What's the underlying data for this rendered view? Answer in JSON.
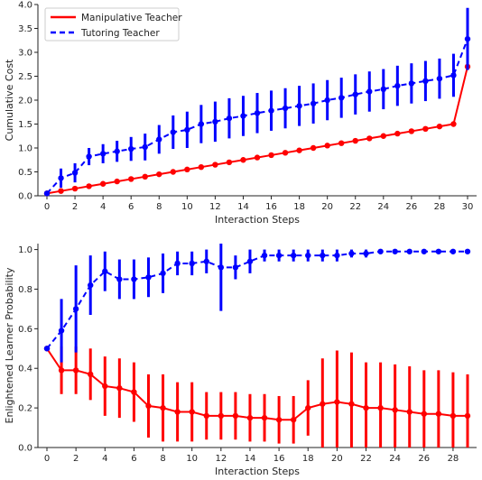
{
  "chart_data": [
    {
      "type": "line",
      "xlabel": "Interaction Steps",
      "ylabel": "Cumulative Cost",
      "xlim": [
        0,
        30
      ],
      "ylim": [
        0,
        4.0
      ],
      "xticks": [
        0,
        2,
        4,
        6,
        8,
        10,
        12,
        14,
        16,
        18,
        20,
        22,
        24,
        26,
        28,
        30
      ],
      "yticks": [
        0.0,
        0.5,
        1.0,
        1.5,
        2.0,
        2.5,
        3.0,
        3.5,
        4.0
      ],
      "ytick_labels": [
        "0.0",
        "0.5",
        "1.0",
        "1.5",
        "2.0",
        "2.5",
        "3.0",
        "3.5",
        "4.0"
      ],
      "legend": {
        "placement": "top-left"
      },
      "series": [
        {
          "name": "Manipulative Teacher",
          "color": "#ff0000",
          "style": "solid",
          "x": [
            0,
            1,
            2,
            3,
            4,
            5,
            6,
            7,
            8,
            9,
            10,
            11,
            12,
            13,
            14,
            15,
            16,
            17,
            18,
            19,
            20,
            21,
            22,
            23,
            24,
            25,
            26,
            27,
            28,
            29,
            30
          ],
          "y": [
            0.05,
            0.1,
            0.15,
            0.2,
            0.25,
            0.3,
            0.35,
            0.4,
            0.45,
            0.5,
            0.55,
            0.6,
            0.65,
            0.7,
            0.75,
            0.8,
            0.85,
            0.9,
            0.95,
            1.0,
            1.05,
            1.1,
            1.15,
            1.2,
            1.25,
            1.3,
            1.35,
            1.4,
            1.45,
            1.5,
            2.7
          ],
          "err": [
            0,
            0,
            0,
            0,
            0,
            0,
            0,
            0,
            0,
            0,
            0,
            0,
            0,
            0,
            0,
            0,
            0,
            0,
            0,
            0,
            0,
            0,
            0,
            0,
            0,
            0,
            0,
            0,
            0,
            0,
            0
          ]
        },
        {
          "name": "Tutoring Teacher",
          "color": "#0000ff",
          "style": "dashed",
          "x": [
            0,
            1,
            2,
            3,
            4,
            5,
            6,
            7,
            8,
            9,
            10,
            11,
            12,
            13,
            14,
            15,
            16,
            17,
            18,
            19,
            20,
            21,
            22,
            23,
            24,
            25,
            26,
            27,
            28,
            29,
            30
          ],
          "y": [
            0.05,
            0.37,
            0.48,
            0.82,
            0.88,
            0.93,
            0.98,
            1.02,
            1.18,
            1.33,
            1.38,
            1.5,
            1.55,
            1.62,
            1.67,
            1.73,
            1.78,
            1.83,
            1.88,
            1.93,
            2.0,
            2.05,
            2.12,
            2.18,
            2.23,
            2.3,
            2.35,
            2.4,
            2.45,
            2.52,
            3.28
          ],
          "err": [
            0.05,
            0.2,
            0.2,
            0.18,
            0.2,
            0.22,
            0.25,
            0.28,
            0.3,
            0.35,
            0.38,
            0.4,
            0.42,
            0.42,
            0.42,
            0.42,
            0.42,
            0.42,
            0.42,
            0.42,
            0.42,
            0.42,
            0.42,
            0.42,
            0.42,
            0.42,
            0.42,
            0.42,
            0.42,
            0.45,
            0.65
          ]
        }
      ]
    },
    {
      "type": "line",
      "xlabel": "Interaction Steps",
      "ylabel": "Enlightened Learner Probability",
      "xlim": [
        0,
        29
      ],
      "ylim": [
        0,
        1.03
      ],
      "xticks": [
        0,
        2,
        4,
        6,
        8,
        10,
        12,
        14,
        16,
        18,
        20,
        22,
        24,
        26,
        28
      ],
      "yticks": [
        0.0,
        0.2,
        0.4,
        0.6,
        0.8,
        1.0
      ],
      "ytick_labels": [
        "0.0",
        "0.2",
        "0.4",
        "0.6",
        "0.8",
        "1.0"
      ],
      "series": [
        {
          "name": "Manipulative Teacher",
          "color": "#ff0000",
          "style": "solid",
          "x": [
            0,
            1,
            2,
            3,
            4,
            5,
            6,
            7,
            8,
            9,
            10,
            11,
            12,
            13,
            14,
            15,
            16,
            17,
            18,
            19,
            20,
            21,
            22,
            23,
            24,
            25,
            26,
            27,
            28,
            29
          ],
          "y": [
            0.5,
            0.39,
            0.39,
            0.37,
            0.31,
            0.3,
            0.28,
            0.21,
            0.2,
            0.18,
            0.18,
            0.16,
            0.16,
            0.16,
            0.15,
            0.15,
            0.14,
            0.14,
            0.2,
            0.22,
            0.23,
            0.22,
            0.2,
            0.2,
            0.19,
            0.18,
            0.17,
            0.17,
            0.16,
            0.16
          ],
          "err": [
            0.0,
            0.12,
            0.12,
            0.13,
            0.15,
            0.15,
            0.15,
            0.16,
            0.17,
            0.15,
            0.15,
            0.12,
            0.12,
            0.12,
            0.12,
            0.12,
            0.12,
            0.12,
            0.14,
            0.23,
            0.26,
            0.26,
            0.23,
            0.23,
            0.23,
            0.23,
            0.22,
            0.22,
            0.22,
            0.21
          ]
        },
        {
          "name": "Tutoring Teacher",
          "color": "#0000ff",
          "style": "dashed",
          "x": [
            0,
            1,
            2,
            3,
            4,
            5,
            6,
            7,
            8,
            9,
            10,
            11,
            12,
            13,
            14,
            15,
            16,
            17,
            18,
            19,
            20,
            21,
            22,
            23,
            24,
            25,
            26,
            27,
            28,
            29
          ],
          "y": [
            0.5,
            0.59,
            0.7,
            0.82,
            0.89,
            0.85,
            0.85,
            0.86,
            0.88,
            0.93,
            0.93,
            0.94,
            0.91,
            0.91,
            0.94,
            0.97,
            0.97,
            0.97,
            0.97,
            0.97,
            0.97,
            0.98,
            0.98,
            0.99,
            0.99,
            0.99,
            0.99,
            0.99,
            0.99,
            0.99
          ],
          "err": [
            0.0,
            0.16,
            0.22,
            0.15,
            0.1,
            0.1,
            0.1,
            0.1,
            0.1,
            0.06,
            0.06,
            0.06,
            0.22,
            0.06,
            0.06,
            0.03,
            0.03,
            0.03,
            0.03,
            0.03,
            0.03,
            0.02,
            0.02,
            0.01,
            0.01,
            0.01,
            0.01,
            0.01,
            0.01,
            0.01
          ]
        }
      ]
    }
  ]
}
